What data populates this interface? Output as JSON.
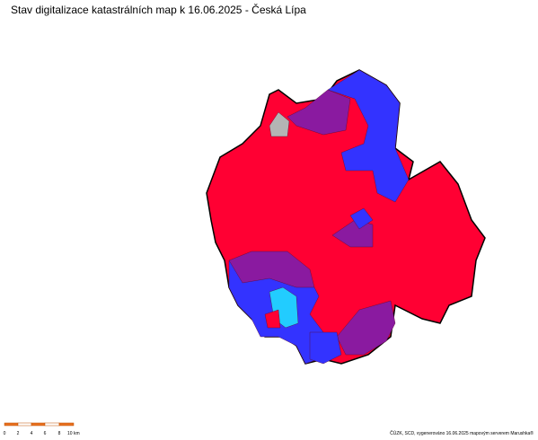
{
  "header": {
    "title": "Stav digitalizace katastrálních map k 16.06.2025 - Česká Lípa"
  },
  "scale_bar": {
    "labels": [
      "0",
      "2",
      "4",
      "6",
      "8",
      "10 km"
    ]
  },
  "footer": {
    "credit": "ČÚZK, SCD, vygenerováno 16.06.2025 mapovým serverem Marushka®"
  }
}
